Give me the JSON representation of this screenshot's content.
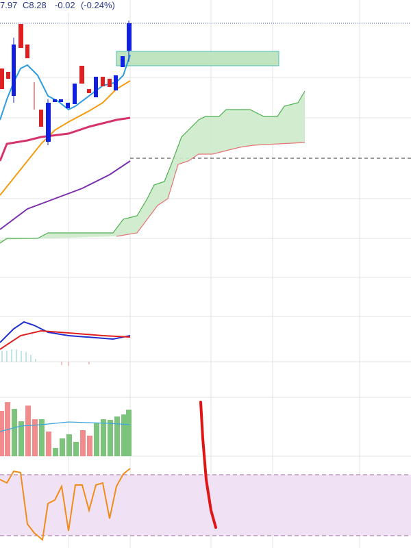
{
  "header": {
    "low": "7.97",
    "close": "C8.28",
    "change": "-0.02",
    "change_pct": "(-0.24%)"
  }
}
